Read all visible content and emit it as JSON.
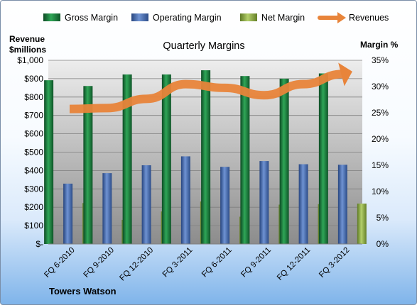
{
  "chart_data": {
    "type": "bar",
    "title": "Quarterly Margins",
    "source_label": "Towers Watson",
    "categories": [
      "FQ 6-2010",
      "FQ 9-2010",
      "FQ 12-2010",
      "FQ 3-2011",
      "FQ 6-2011",
      "FQ 9-2011",
      "FQ 12-2011",
      "FQ 3-2012"
    ],
    "left_axis": {
      "label_line1": "Revenue",
      "label_line2": "$millions",
      "range": [
        0,
        1000
      ],
      "ticks": [
        0,
        100,
        200,
        300,
        400,
        500,
        600,
        700,
        800,
        900,
        1000
      ],
      "tick_labels": [
        "$-",
        "$100",
        "$200",
        "$300",
        "$400",
        "$500",
        "$600",
        "$700",
        "$800",
        "$900",
        "$1,000"
      ]
    },
    "right_axis": {
      "label": "Margin %",
      "range": [
        0,
        35
      ],
      "ticks": [
        0,
        5,
        10,
        15,
        20,
        25,
        30,
        35
      ],
      "tick_labels": [
        "0%",
        "5%",
        "10%",
        "15%",
        "20%",
        "25%",
        "30%",
        "35%"
      ]
    },
    "series": [
      {
        "name": "Gross Margin",
        "kind": "bar",
        "axis": "right",
        "color": "#1f7a3e",
        "values": [
          31.2,
          30.1,
          32.3,
          32.3,
          33.1,
          32.0,
          31.5,
          32.5
        ]
      },
      {
        "name": "Operating Margin",
        "kind": "bar",
        "axis": "right",
        "color": "#3e63a8",
        "values": [
          11.5,
          13.5,
          15.0,
          16.7,
          14.7,
          15.8,
          15.2,
          15.1
        ]
      },
      {
        "name": "Net Margin",
        "kind": "bar",
        "axis": "right",
        "color": "#8aaa3e",
        "values": [
          7.8,
          4.6,
          6.2,
          8.1,
          5.2,
          7.5,
          7.6,
          7.7
        ]
      },
      {
        "name": "Revenues",
        "kind": "line",
        "axis": "left",
        "color": "#e8843a",
        "values": [
          735,
          740,
          790,
          870,
          850,
          810,
          870,
          925
        ]
      }
    ],
    "grid": true,
    "legend_position": "top"
  }
}
